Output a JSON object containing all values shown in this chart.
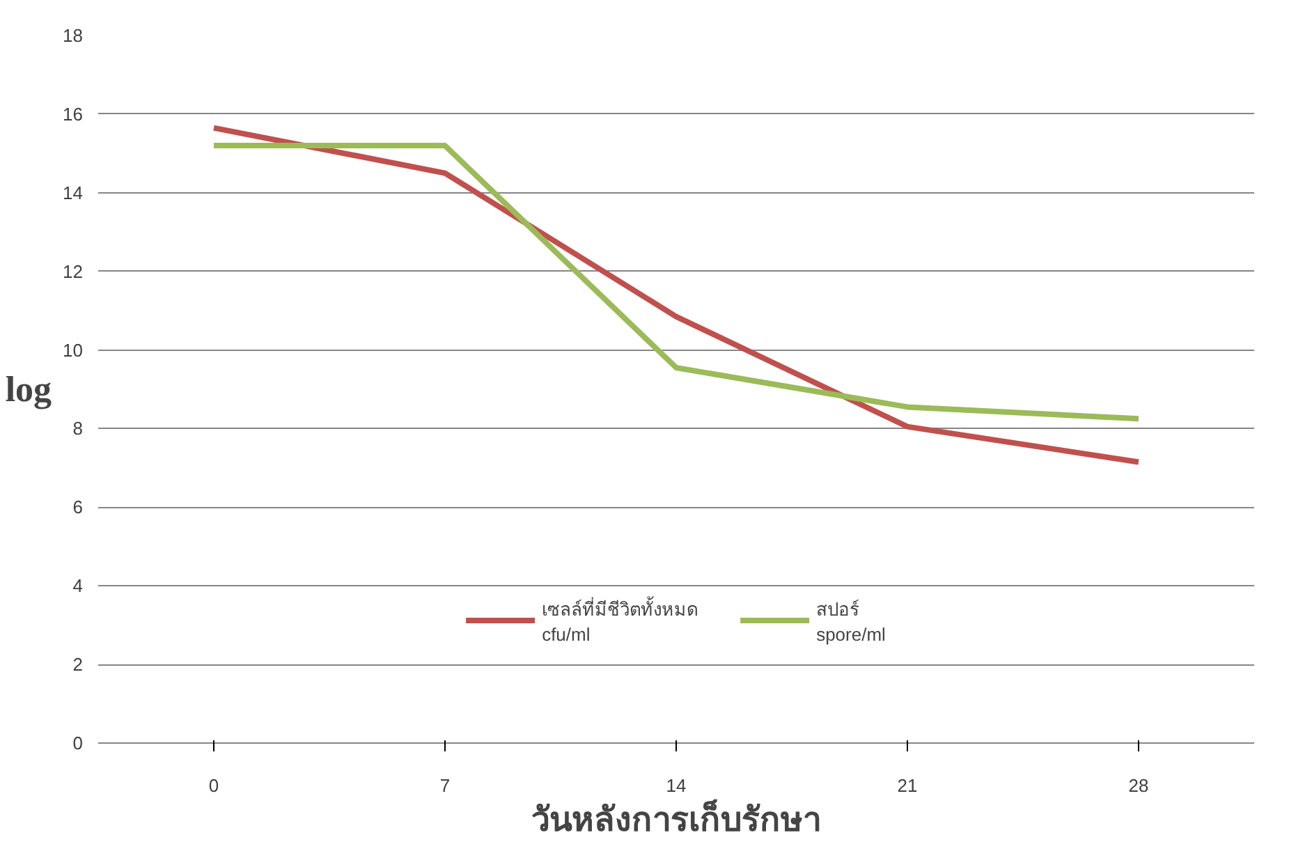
{
  "chart_data": {
    "type": "line",
    "xlabel": "วันหลังการเก็บรักษา",
    "ylabel": "log",
    "categories": [
      "0",
      "7",
      "14",
      "21",
      "28"
    ],
    "series": [
      {
        "name": "เซลล์ที่มีชีวิตทั้งหมด\ncfu/ml",
        "color": "#c0504d",
        "values": [
          15.65,
          14.5,
          10.85,
          8.05,
          7.15
        ]
      },
      {
        "name": "สปอร์\nspore/ml",
        "color": "#9bbb59",
        "values": [
          15.2,
          15.2,
          9.55,
          8.55,
          8.25
        ]
      }
    ],
    "ylim": [
      0,
      18
    ],
    "yticks": [
      0,
      2,
      4,
      6,
      8,
      10,
      12,
      14,
      16,
      18
    ],
    "grid": "y",
    "legend": "bottom",
    "marker": "none",
    "line_style": "solid"
  }
}
